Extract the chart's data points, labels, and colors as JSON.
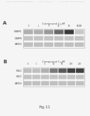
{
  "header_text": "Human Applications Randomization        Aug. 24, 2008 / V.1          U.S. Patent #: US 8,000,678 B1",
  "figure_label": "Fig.11",
  "panel_A_label": "A",
  "panel_B_label": "B",
  "panel_A_title": "Compound 1 μM",
  "panel_B_title": "Compound 1 μM",
  "panel_A_lanes": [
    "0",
    "1",
    "5",
    "10",
    "50",
    "AICAR"
  ],
  "panel_B_lanes": [
    "0",
    "1",
    "5",
    "10",
    "50",
    "100",
    "200"
  ],
  "panel_A_rows": [
    "P-AMPK",
    "T-AMPK",
    "GAPDH"
  ],
  "panel_B_rows": [
    "P-ACC",
    "T-ACC",
    "GAPDH"
  ],
  "bg_color": "#f5f5f5",
  "panel_bg": "#ffffff",
  "band_colors_A": {
    "P-AMPK": [
      "#b0b0b0",
      "#b0b0b0",
      "#999999",
      "#6a6a6a",
      "#3a3a3a",
      "#c8c8c8"
    ],
    "T-AMPK": [
      "#c5c5c5",
      "#c5c5c5",
      "#c5c5c5",
      "#c5c5c5",
      "#c5c5c5",
      "#c5c5c5"
    ],
    "GAPDH": [
      "#c0c0c0",
      "#c0c0c0",
      "#c0c0c0",
      "#c0c0c0",
      "#c0c0c0",
      "#c0c0c0"
    ]
  },
  "band_colors_B": {
    "P-ACC": [
      "#c0c0c0",
      "#c0c0c0",
      "#b0b0b0",
      "#7a7a7a",
      "#5a5a5a",
      "#404040",
      "#404040"
    ],
    "T-ACC": [
      "#c5c5c5",
      "#c5c5c5",
      "#c5c5c5",
      "#c5c5c5",
      "#c5c5c5",
      "#c5c5c5",
      "#c5c5c5"
    ],
    "GAPDH": [
      "#c0c0c0",
      "#c0c0c0",
      "#c0c0c0",
      "#c0c0c0",
      "#c0c0c0",
      "#c0c0c0",
      "#c0c0c0"
    ]
  }
}
